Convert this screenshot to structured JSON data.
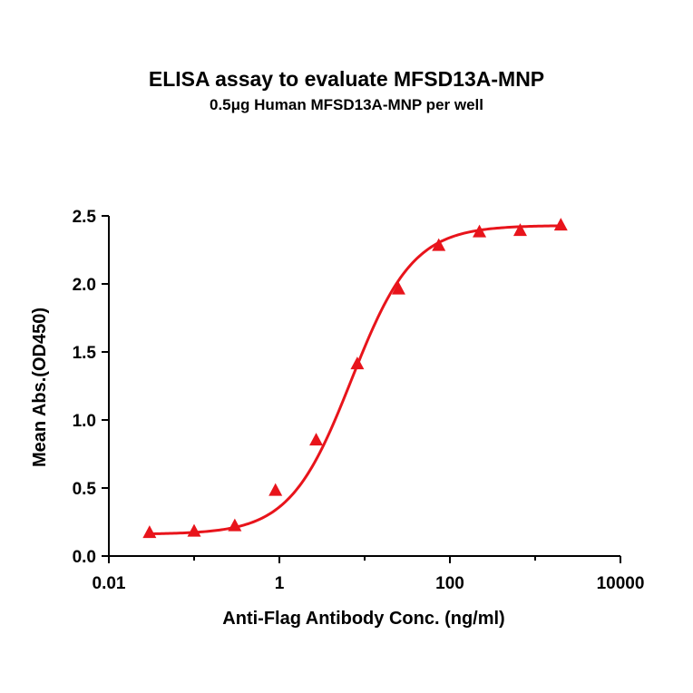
{
  "chart_data": {
    "type": "line",
    "title": "ELISA assay to evaluate MFSD13A-MNP",
    "subtitle": "0.5μg Human MFSD13A-MNP per well",
    "xlabel": "Anti-Flag Antibody Conc. (ng/ml)",
    "ylabel": "Mean Abs.(OD450)",
    "x_scale": "log",
    "xlim": [
      0.01,
      10000
    ],
    "ylim": [
      0,
      2.5
    ],
    "x_ticks": [
      "0.01",
      "1",
      "100",
      "10000"
    ],
    "y_ticks": [
      "0.0",
      "0.5",
      "1.0",
      "1.5",
      "2.0",
      "2.5"
    ],
    "series": [
      {
        "color": "#e8141b",
        "marker": "triangle",
        "x": [
          0.03,
          0.1,
          0.3,
          0.9,
          2.7,
          8.2,
          25,
          74,
          222,
          667,
          2000
        ],
        "y": [
          0.17,
          0.18,
          0.22,
          0.48,
          0.85,
          1.41,
          1.96,
          2.28,
          2.38,
          2.39,
          2.43
        ]
      }
    ],
    "fit_curve": {
      "bottom": 0.16,
      "top": 2.43,
      "ec50": 7.0,
      "hill": 1.2
    },
    "grid": false,
    "legend": "none"
  }
}
